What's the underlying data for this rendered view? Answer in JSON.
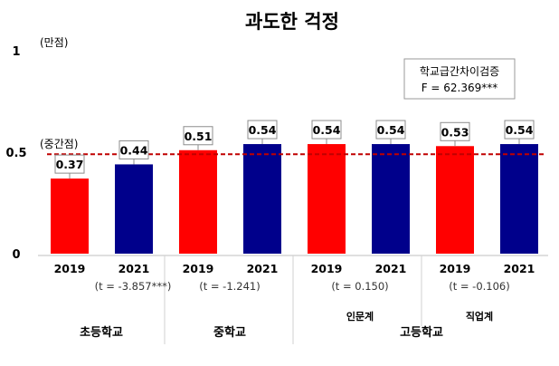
{
  "chart_data": {
    "type": "bar",
    "title": "과도한 걱정",
    "ylim": [
      0,
      1
    ],
    "yticks": [
      {
        "value": 1,
        "label": "1",
        "note": "(만점)"
      },
      {
        "value": 0.5,
        "label": "0.5",
        "note": "(중간점)"
      },
      {
        "value": 0,
        "label": "0",
        "note": ""
      }
    ],
    "reference_line": {
      "value": 0.49,
      "color": "#c00000",
      "style": "dashed"
    },
    "bars": [
      {
        "year": "2019",
        "value": 0.37,
        "label": "0.37",
        "color": "#ff0000"
      },
      {
        "year": "2021",
        "value": 0.44,
        "label": "0.44",
        "color": "#00008b"
      },
      {
        "year": "2019",
        "value": 0.51,
        "label": "0.51",
        "color": "#ff0000"
      },
      {
        "year": "2021",
        "value": 0.54,
        "label": "0.54",
        "color": "#00008b"
      },
      {
        "year": "2019",
        "value": 0.54,
        "label": "0.54",
        "color": "#ff0000"
      },
      {
        "year": "2021",
        "value": 0.54,
        "label": "0.54",
        "color": "#00008b"
      },
      {
        "year": "2019",
        "value": 0.53,
        "label": "0.53",
        "color": "#ff0000"
      },
      {
        "year": "2021",
        "value": 0.54,
        "label": "0.54",
        "color": "#00008b"
      }
    ],
    "t_stats": [
      "(t = -3.857***)",
      "(t = -1.241)",
      "(t = 0.150)",
      "(t = -0.106)"
    ],
    "groups": [
      "초등학교",
      "중학교",
      "고등학교"
    ],
    "subgroups": [
      "인문계",
      "직업계"
    ],
    "stat_box": [
      "학교급간차이검증",
      "F = 62.369***"
    ]
  }
}
